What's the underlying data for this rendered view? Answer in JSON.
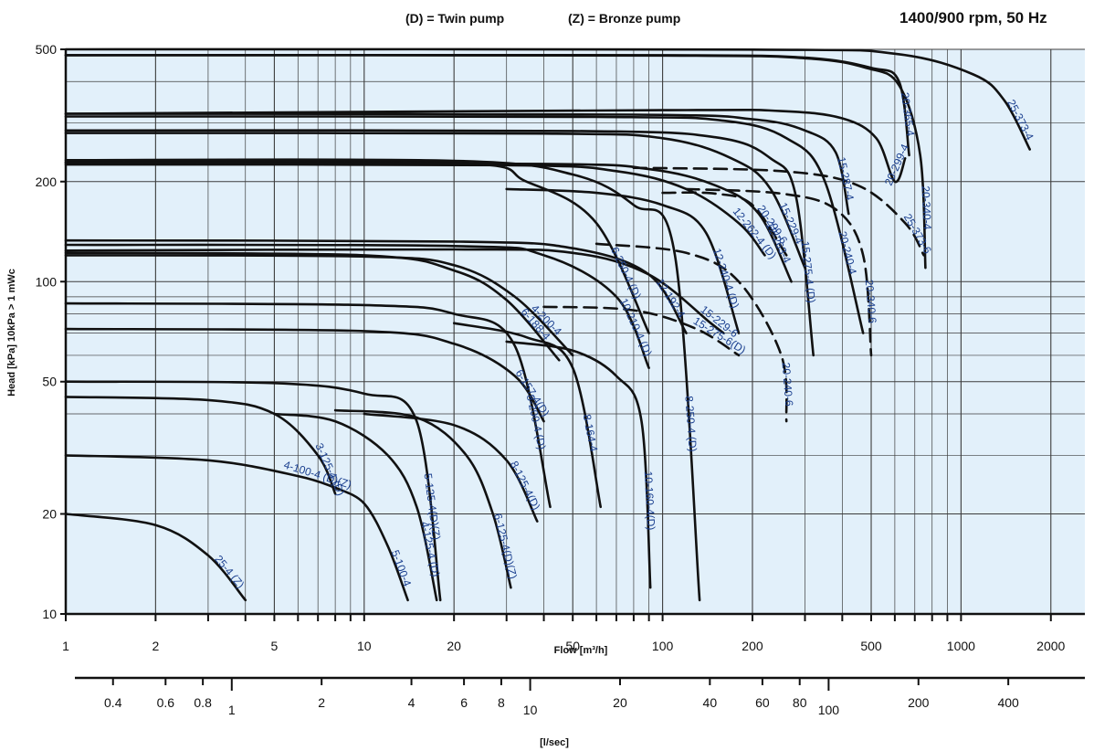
{
  "header": {
    "legend_note_twin": "(D) = Twin pump",
    "legend_note_bronze": "(Z) = Bronze pump",
    "speed_note": "1400/900 rpm, 50 Hz"
  },
  "colors": {
    "plot_bg": "#e2f0fa",
    "grid": "#3c3c3c",
    "curve": "#111111",
    "label": "#1a3f8f"
  },
  "chart_data": {
    "type": "line",
    "title": "",
    "xlabel": "Flow  [m³/h]",
    "ylabel": "Head [kPa]  10kPa > 1 mWc",
    "x_scale": "log",
    "y_scale": "log",
    "xlim": [
      1,
      2600
    ],
    "ylim": [
      10,
      500
    ],
    "grid": true,
    "x_ticks": [
      "1",
      "2",
      "5",
      "10",
      "20",
      "50",
      "100",
      "200",
      "500",
      "1000",
      "2000"
    ],
    "y_ticks": [
      "10",
      "20",
      "50",
      "100",
      "200",
      "500"
    ],
    "secondary_xlabel": "[l/sec]",
    "secondary_x_ticks": [
      "0.4",
      "0.6",
      "0.8",
      "1",
      "2",
      "4",
      "6",
      "8",
      "10",
      "20",
      "40",
      "60",
      "80",
      "100",
      "200",
      "400"
    ],
    "series": [
      {
        "name": "25-4 (Z)",
        "points": [
          [
            1,
            20
          ],
          [
            2,
            18.5
          ],
          [
            3,
            15
          ],
          [
            4,
            11
          ]
        ]
      },
      {
        "name": "4-100-4 (D)(Z)",
        "points": [
          [
            1,
            30
          ],
          [
            3,
            29
          ],
          [
            6,
            26
          ],
          [
            8,
            24
          ]
        ]
      },
      {
        "name": "5-100-4",
        "points": [
          [
            8,
            24
          ],
          [
            10,
            21.5
          ],
          [
            12,
            16
          ],
          [
            14,
            11
          ]
        ]
      },
      {
        "name": "3-125-4 (D)",
        "points": [
          [
            1,
            45
          ],
          [
            3,
            44
          ],
          [
            5,
            40
          ],
          [
            7,
            30
          ],
          [
            8,
            23
          ]
        ]
      },
      {
        "name": "4-125-4 (D)",
        "points": [
          [
            5,
            40
          ],
          [
            8,
            38
          ],
          [
            12,
            30
          ],
          [
            15,
            21
          ],
          [
            17.5,
            11
          ]
        ]
      },
      {
        "name": "5-125-4(D)(Z)",
        "points": [
          [
            1,
            50
          ],
          [
            5,
            49.5
          ],
          [
            10,
            46
          ],
          [
            15,
            38
          ],
          [
            18,
            11
          ]
        ]
      },
      {
        "name": "6-125-4(D)(Z)",
        "points": [
          [
            8,
            41
          ],
          [
            15,
            39
          ],
          [
            22,
            30
          ],
          [
            27,
            20
          ],
          [
            31,
            12
          ]
        ]
      },
      {
        "name": "8-125-4(D)",
        "points": [
          [
            10,
            40
          ],
          [
            20,
            37
          ],
          [
            30,
            29
          ],
          [
            38,
            19
          ]
        ]
      },
      {
        "name": "6-157-4(D)",
        "points": [
          [
            1,
            72
          ],
          [
            10,
            71
          ],
          [
            20,
            65
          ],
          [
            32,
            52
          ],
          [
            40,
            38
          ]
        ]
      },
      {
        "name": "8-200-4 (D)",
        "points": [
          [
            1,
            86
          ],
          [
            10,
            85
          ],
          [
            20,
            80
          ],
          [
            32,
            64
          ],
          [
            42,
            21
          ]
        ]
      },
      {
        "name": "6-188-4",
        "points": [
          [
            1,
            122
          ],
          [
            10,
            120
          ],
          [
            20,
            108
          ],
          [
            30,
            88
          ],
          [
            45,
            58
          ]
        ]
      },
      {
        "name": "8-164-4",
        "points": [
          [
            20,
            75
          ],
          [
            35,
            68
          ],
          [
            50,
            55
          ],
          [
            62,
            21
          ]
        ]
      },
      {
        "name": "4-200-4",
        "points": [
          [
            1,
            120
          ],
          [
            10,
            119
          ],
          [
            20,
            112
          ],
          [
            32,
            90
          ],
          [
            50,
            60
          ]
        ]
      },
      {
        "name": "10-160-4(D)",
        "points": [
          [
            30,
            66
          ],
          [
            50,
            62
          ],
          [
            70,
            52
          ],
          [
            85,
            38
          ],
          [
            91,
            12
          ]
        ]
      },
      {
        "name": "10-210-4 (D)",
        "points": [
          [
            1,
            129
          ],
          [
            20,
            128
          ],
          [
            40,
            120
          ],
          [
            70,
            90
          ],
          [
            90,
            55
          ]
        ]
      },
      {
        "name": "6-250-4 (D)",
        "points": [
          [
            1,
            229
          ],
          [
            20,
            228
          ],
          [
            35,
            200
          ],
          [
            60,
            150
          ],
          [
            90,
            70
          ]
        ]
      },
      {
        "name": "8-250-4 (D)",
        "points": [
          [
            1,
            232
          ],
          [
            20,
            231
          ],
          [
            50,
            210
          ],
          [
            80,
            170
          ],
          [
            110,
            120
          ],
          [
            133,
            11
          ]
        ]
      },
      {
        "name": "12-192-4",
        "points": [
          [
            1,
            133
          ],
          [
            20,
            132
          ],
          [
            50,
            126
          ],
          [
            90,
            105
          ],
          [
            120,
            70
          ]
        ]
      },
      {
        "name": "15-229-6",
        "points": [
          [
            1,
            124
          ],
          [
            20,
            125
          ],
          [
            50,
            122
          ],
          [
            90,
            105
          ],
          [
            145,
            75
          ],
          [
            160,
            70
          ]
        ]
      },
      {
        "name": "12-240-4 (D)",
        "points": [
          [
            30,
            190
          ],
          [
            60,
            185
          ],
          [
            100,
            170
          ],
          [
            140,
            140
          ],
          [
            180,
            70
          ]
        ]
      },
      {
        "name": "12-262-4 (D)",
        "points": [
          [
            1,
            225
          ],
          [
            30,
            224
          ],
          [
            70,
            215
          ],
          [
            120,
            190
          ],
          [
            180,
            150
          ],
          [
            220,
            120
          ]
        ]
      },
      {
        "name": "12-263-4",
        "points": [
          [
            1,
            228
          ],
          [
            40,
            226
          ],
          [
            90,
            218
          ],
          [
            150,
            195
          ],
          [
            210,
            160
          ],
          [
            270,
            100
          ]
        ]
      },
      {
        "name": "15-229-4",
        "points": [
          [
            1,
            280
          ],
          [
            40,
            279
          ],
          [
            100,
            270
          ],
          [
            170,
            235
          ],
          [
            230,
            190
          ],
          [
            300,
            110
          ]
        ]
      },
      {
        "name": "15-275-4 (D)",
        "points": [
          [
            1,
            285
          ],
          [
            50,
            284
          ],
          [
            150,
            272
          ],
          [
            230,
            235
          ],
          [
            280,
            180
          ],
          [
            320,
            60
          ]
        ]
      },
      {
        "name": "20-240-4",
        "points": [
          [
            1,
            314
          ],
          [
            60,
            313
          ],
          [
            160,
            305
          ],
          [
            260,
            270
          ],
          [
            350,
            200
          ],
          [
            470,
            70
          ]
        ]
      },
      {
        "name": "15-287-4",
        "points": [
          [
            1,
            320
          ],
          [
            80,
            318
          ],
          [
            200,
            308
          ],
          [
            300,
            285
          ],
          [
            380,
            245
          ],
          [
            420,
            160
          ]
        ]
      },
      {
        "name": "20-299-4",
        "points": [
          [
            1,
            320
          ],
          [
            100,
            328
          ],
          [
            250,
            326
          ],
          [
            400,
            310
          ],
          [
            520,
            270
          ],
          [
            600,
            200
          ],
          [
            650,
            235
          ]
        ]
      },
      {
        "name": "20-340-4",
        "points": [
          [
            1,
            480
          ],
          [
            100,
            479
          ],
          [
            300,
            470
          ],
          [
            480,
            440
          ],
          [
            620,
            390
          ],
          [
            730,
            240
          ],
          [
            760,
            110
          ]
        ]
      },
      {
        "name": "20-365-4",
        "points": [
          [
            1,
            480
          ],
          [
            100,
            480
          ],
          [
            300,
            472
          ],
          [
            500,
            440
          ],
          [
            620,
            400
          ],
          [
            670,
            240
          ]
        ]
      },
      {
        "name": "25-373-4",
        "points": [
          [
            1,
            500
          ],
          [
            200,
            499
          ],
          [
            600,
            485
          ],
          [
            1100,
            420
          ],
          [
            1400,
            350
          ],
          [
            1700,
            250
          ]
        ]
      },
      {
        "name": "15-275-6(D)",
        "dashed": true,
        "points": [
          [
            40,
            84
          ],
          [
            80,
            82
          ],
          [
            130,
            72
          ],
          [
            180,
            60
          ]
        ]
      },
      {
        "name": "20-299-6",
        "dashed": true,
        "points": [
          [
            100,
            185
          ],
          [
            150,
            184
          ],
          [
            200,
            170
          ],
          [
            260,
            120
          ]
        ]
      },
      {
        "name": "20-240-6",
        "dashed": true,
        "points": [
          [
            60,
            130
          ],
          [
            120,
            122
          ],
          [
            180,
            100
          ],
          [
            250,
            60
          ],
          [
            260,
            38
          ]
        ]
      },
      {
        "name": "20-340-6",
        "dashed": true,
        "points": [
          [
            120,
            190
          ],
          [
            250,
            184
          ],
          [
            380,
            165
          ],
          [
            470,
            120
          ],
          [
            500,
            60
          ]
        ]
      },
      {
        "name": "25-373-6",
        "dashed": true,
        "points": [
          [
            80,
            220
          ],
          [
            250,
            215
          ],
          [
            450,
            195
          ],
          [
            650,
            150
          ],
          [
            750,
            120
          ]
        ]
      }
    ]
  }
}
